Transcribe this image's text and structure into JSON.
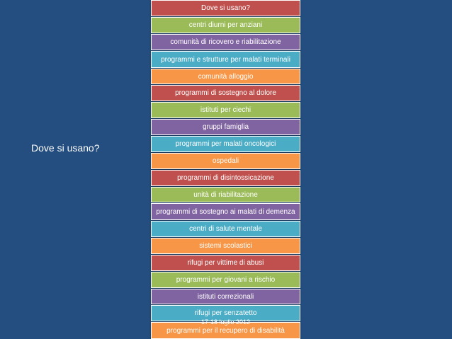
{
  "slide": {
    "left_title": "Dove si usano?",
    "footer_date": "17-18 luglio 2012"
  },
  "boxes": [
    {
      "label": "Dove si usano?",
      "color": "#c0504d"
    },
    {
      "label": "centri diurni per anziani",
      "color": "#9bbb59"
    },
    {
      "label": "comunità di ricovero e riabilitazione",
      "color": "#8064a2"
    },
    {
      "label": "programmi e strutture per malati terminali",
      "color": "#4bacc6"
    },
    {
      "label": "comunità alloggio",
      "color": "#f79646"
    },
    {
      "label": "programmi di sostegno al dolore",
      "color": "#c0504d"
    },
    {
      "label": "istituti per ciechi",
      "color": "#9bbb59"
    },
    {
      "label": "gruppi famiglia",
      "color": "#8064a2"
    },
    {
      "label": "programmi per malati oncologici",
      "color": "#4bacc6"
    },
    {
      "label": "ospedali",
      "color": "#f79646"
    },
    {
      "label": "programmi di disintossicazione",
      "color": "#c0504d"
    },
    {
      "label": "unità di riabilitazione",
      "color": "#9bbb59"
    },
    {
      "label": "programmi di sostegno ai malati di demenza",
      "color": "#8064a2"
    },
    {
      "label": "centri di salute mentale",
      "color": "#4bacc6"
    },
    {
      "label": "sistemi scolastici",
      "color": "#f79646"
    },
    {
      "label": "rifugi per vittime di abusi",
      "color": "#c0504d"
    },
    {
      "label": "programmi per giovani a rischio",
      "color": "#9bbb59"
    },
    {
      "label": "istituti correzionali",
      "color": "#8064a2"
    },
    {
      "label": "rifugi per senzatetto",
      "color": "#4bacc6"
    },
    {
      "label": "programmi per il recupero di disabilità",
      "color": "#f79646"
    }
  ]
}
